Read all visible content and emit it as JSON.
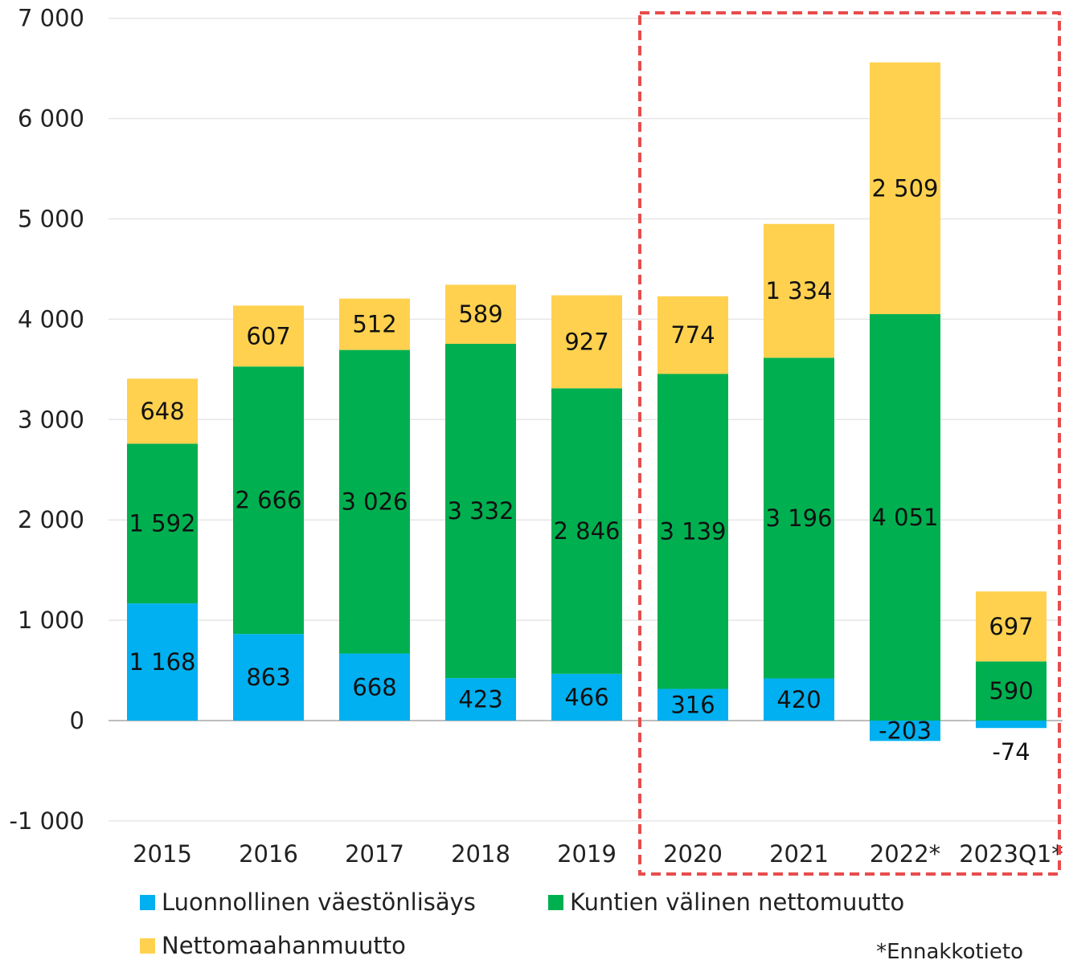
{
  "chart_data": {
    "type": "bar",
    "stacked": true,
    "categories": [
      "2015",
      "2016",
      "2017",
      "2018",
      "2019",
      "2020",
      "2021",
      "2022*",
      "2023Q1*"
    ],
    "series": [
      {
        "name": "Luonnollinen väestönlisäys",
        "color": "#00b0f0",
        "values": [
          1168,
          863,
          668,
          423,
          466,
          316,
          420,
          -203,
          -74
        ],
        "labels": [
          "1 168",
          "863",
          "668",
          "423",
          "466",
          "316",
          "420",
          "-203",
          "-74"
        ]
      },
      {
        "name": "Kuntien välinen nettomuutto",
        "color": "#00b050",
        "values": [
          1592,
          2666,
          3026,
          3332,
          2846,
          3139,
          3196,
          4051,
          590
        ],
        "labels": [
          "1 592",
          "2 666",
          "3 026",
          "3 332",
          "2 846",
          "3 139",
          "3 196",
          "4 051",
          "590"
        ]
      },
      {
        "name": "Nettomaahanmuutto",
        "color": "#ffd14f",
        "values": [
          648,
          607,
          512,
          589,
          927,
          774,
          1334,
          2509,
          697
        ],
        "labels": [
          "648",
          "607",
          "512",
          "589",
          "927",
          "774",
          "1 334",
          "2 509",
          "697"
        ]
      }
    ],
    "ylim": [
      -1000,
      7000
    ],
    "yticks": [
      -1000,
      0,
      1000,
      2000,
      3000,
      4000,
      5000,
      6000,
      7000
    ],
    "ytick_labels": [
      "-1 000",
      "0",
      "1 000",
      "2 000",
      "3 000",
      "4 000",
      "5 000",
      "6 000",
      "7 000"
    ],
    "grid": true,
    "legend_position": "bottom",
    "highlight": {
      "categories": [
        "2020",
        "2021",
        "2022*",
        "2023Q1*"
      ],
      "style": "dashed-box",
      "color": "#e84c4c"
    }
  },
  "footnote": "*Ennakkotieto"
}
